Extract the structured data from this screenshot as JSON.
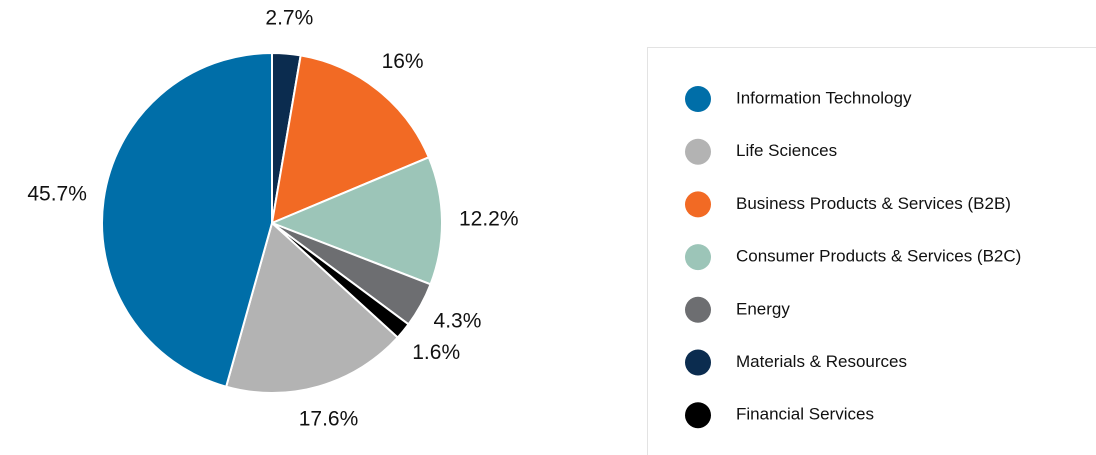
{
  "chart_data": {
    "type": "pie",
    "categories": [
      "Information Technology",
      "Life Sciences",
      "Business Products & Services (B2B)",
      "Consumer Products & Services (B2C)",
      "Energy",
      "Materials & Resources",
      "Financial Services"
    ],
    "values": [
      45.7,
      17.6,
      16,
      12.2,
      4.3,
      2.7,
      1.6
    ],
    "value_labels": [
      "45.7%",
      "17.6%",
      "16%",
      "12.2%",
      "4.3%",
      "2.7%",
      "1.6%"
    ],
    "colors": [
      "#006ea8",
      "#b3b3b3",
      "#f26a24",
      "#9cc5b8",
      "#6d6e71",
      "#0b2c4f",
      "#000000"
    ],
    "legend": "right"
  }
}
